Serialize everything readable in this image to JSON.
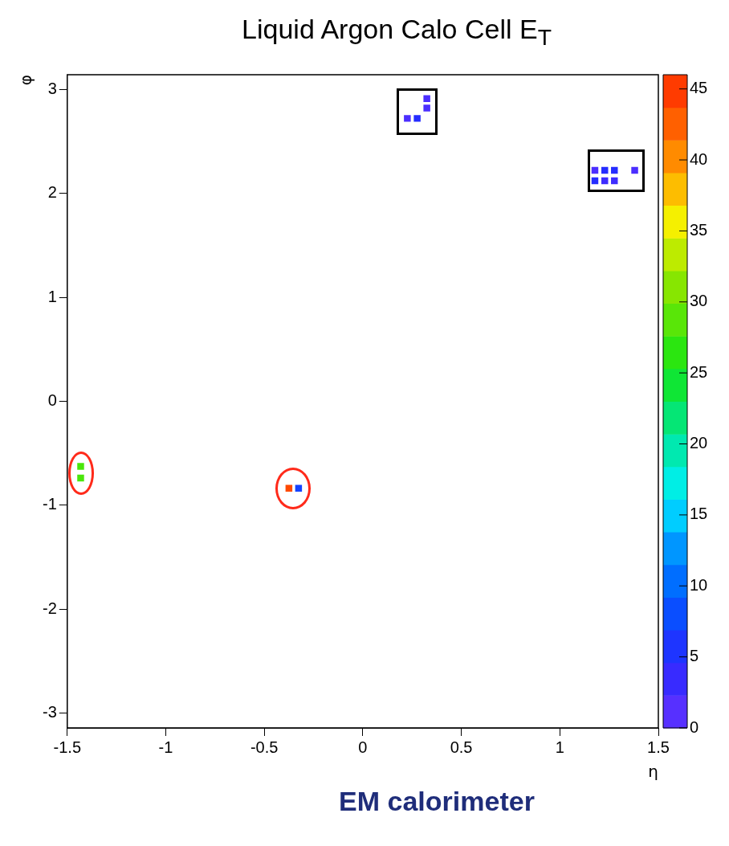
{
  "chart_data": {
    "type": "scatter",
    "title": "Liquid Argon Calo Cell E$_{T}$",
    "xlabel": "η",
    "ylabel": "φ",
    "marker": "square",
    "grid": false,
    "legend": false,
    "xlim": [
      -1.5,
      1.5
    ],
    "xticks": [
      -1.5,
      -1,
      -0.5,
      0,
      0.5,
      1,
      1.5
    ],
    "ylim": [
      -3.14,
      3.14
    ],
    "yticks": [
      -3,
      -2,
      -1,
      0,
      1,
      2,
      3
    ],
    "clim": [
      0,
      46
    ],
    "cticks": [
      0,
      5,
      10,
      15,
      20,
      25,
      30,
      35,
      40,
      45
    ],
    "x": [
      0.226,
      0.276,
      0.325,
      0.325,
      1.178,
      1.228,
      1.277,
      1.178,
      1.228,
      1.277,
      1.38,
      -1.432,
      -1.432,
      -0.375,
      -0.326
    ],
    "values": [
      2.72,
      2.72,
      2.82,
      2.91,
      2.22,
      2.22,
      2.22,
      2.12,
      2.12,
      2.12,
      2.22,
      -0.625,
      -0.738,
      -0.836,
      -0.836
    ],
    "cvalues": [
      2,
      5,
      2,
      2,
      2,
      5,
      5,
      5,
      3,
      3,
      2,
      28,
      28,
      44,
      7
    ],
    "annotations": [
      "EM calorimeter"
    ]
  }
}
